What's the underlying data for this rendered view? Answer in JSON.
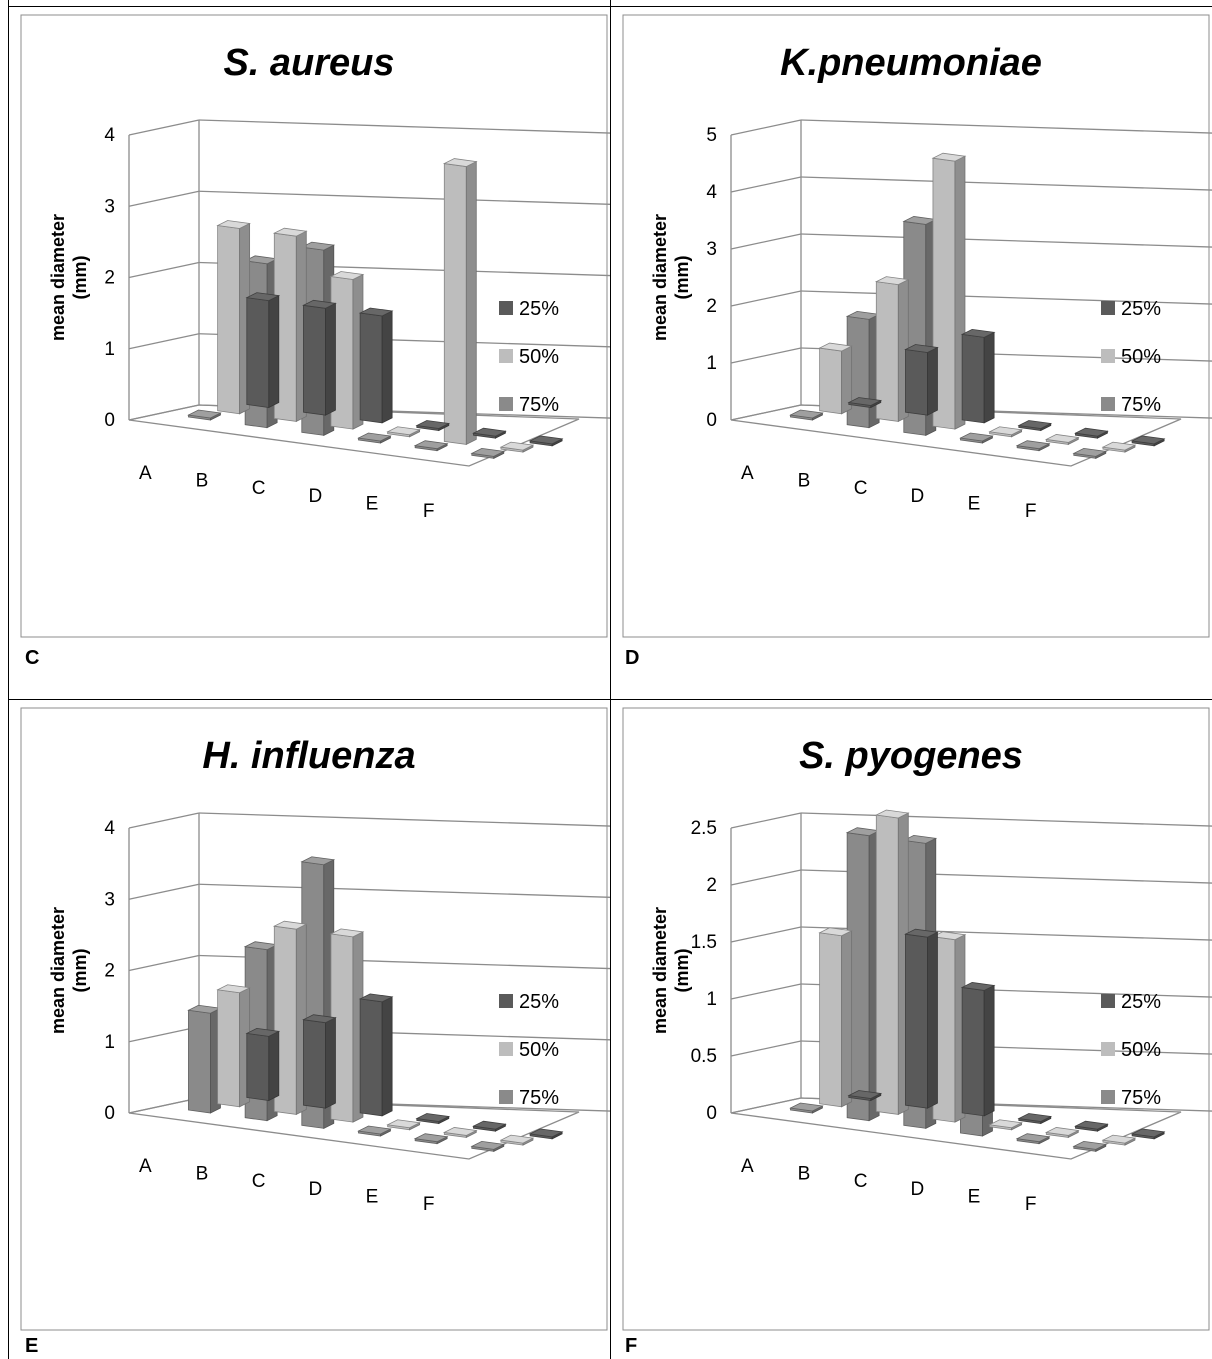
{
  "panels": [
    {
      "letter": "C"
    },
    {
      "letter": "D"
    },
    {
      "letter": "E"
    },
    {
      "letter": "F"
    }
  ],
  "colors": {
    "s25": "#5a5a5a",
    "s50": "#bdbdbd",
    "s75": "#8a8a8a"
  },
  "chart_data": [
    {
      "type": "bar",
      "title": "S. aureus",
      "ylabel": "mean diameter (mm)",
      "categories": [
        "A",
        "B",
        "C",
        "D",
        "E",
        "F"
      ],
      "yticks": [
        "0",
        "1",
        "2",
        "3",
        "4"
      ],
      "ylim": [
        0,
        4
      ],
      "legend": "right",
      "series": [
        {
          "name": "25%",
          "values": [
            1.5,
            1.5,
            1.5,
            0,
            0,
            0
          ]
        },
        {
          "name": "50%",
          "values": [
            2.6,
            2.6,
            2.1,
            0,
            3.9,
            0
          ]
        },
        {
          "name": "75%",
          "values": [
            0,
            2.3,
            2.6,
            0,
            0,
            0
          ]
        }
      ]
    },
    {
      "type": "bar",
      "title": "K.pneumoniae",
      "ylabel": "mean diameter (mm)",
      "categories": [
        "A",
        "B",
        "C",
        "D",
        "E",
        "F"
      ],
      "yticks": [
        "0",
        "1",
        "2",
        "3",
        "4",
        "5"
      ],
      "ylim": [
        0,
        5
      ],
      "legend": "right",
      "series": [
        {
          "name": "25%",
          "values": [
            0,
            1.1,
            1.5,
            0,
            0,
            0
          ]
        },
        {
          "name": "50%",
          "values": [
            1.1,
            2.4,
            4.7,
            0,
            0,
            0
          ]
        },
        {
          "name": "75%",
          "values": [
            0,
            1.9,
            3.7,
            0,
            0,
            0
          ]
        }
      ]
    },
    {
      "type": "bar",
      "title": "H. influenza",
      "ylabel": "mean diameter (mm)",
      "categories": [
        "A",
        "B",
        "C",
        "D",
        "E",
        "F"
      ],
      "yticks": [
        "0",
        "1",
        "2",
        "3",
        "4"
      ],
      "ylim": [
        0,
        4
      ],
      "legend": "right",
      "series": [
        {
          "name": "25%",
          "values": [
            0.9,
            1.2,
            1.6,
            0,
            0,
            0
          ]
        },
        {
          "name": "50%",
          "values": [
            1.6,
            2.6,
            2.6,
            0,
            0,
            0
          ]
        },
        {
          "name": "75%",
          "values": [
            1.4,
            2.4,
            3.7,
            0,
            0,
            0
          ]
        }
      ]
    },
    {
      "type": "bar",
      "title": "S. pyogenes",
      "ylabel": "mean diameter (mm)",
      "categories": [
        "A",
        "B",
        "C",
        "D",
        "E",
        "F"
      ],
      "yticks": [
        "0",
        "0.5",
        "1",
        "1.5",
        "2",
        "2.5"
      ],
      "ylim": [
        0,
        2.5
      ],
      "legend": "right",
      "series": [
        {
          "name": "25%",
          "values": [
            0,
            1.5,
            1.1,
            0,
            0,
            0
          ]
        },
        {
          "name": "50%",
          "values": [
            1.5,
            2.6,
            1.6,
            0,
            0,
            0
          ]
        },
        {
          "name": "75%",
          "values": [
            0,
            2.5,
            2.5,
            1.0,
            0,
            0
          ]
        }
      ]
    }
  ]
}
